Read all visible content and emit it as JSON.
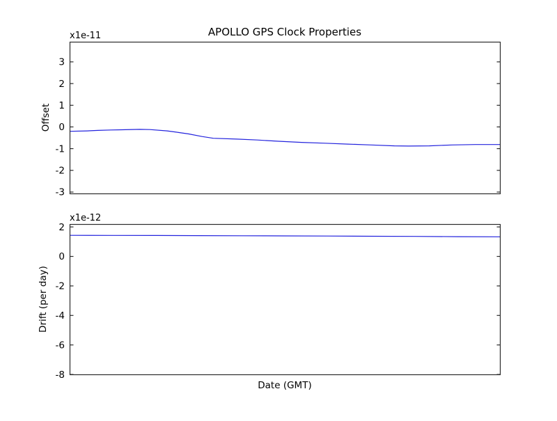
{
  "figure": {
    "background_color": "#ffffff",
    "axes_color": "#2a2a2a",
    "text_color": "#000000"
  },
  "chart_data": [
    {
      "type": "line",
      "name": "offset",
      "title": "APOLLO GPS Clock Properties",
      "ylabel": "Offset",
      "scale_label": "x1e-11",
      "unit_multiplier": "1e-11",
      "line_color": "#2222dd",
      "grid": false,
      "legend": "none",
      "ylim": [
        -3.08,
        3.91
      ],
      "yticks": [
        3,
        2,
        1,
        0,
        -1,
        -2,
        -3
      ],
      "ytick_labels": [
        "3",
        "2",
        "1",
        "0",
        "-1",
        "-2",
        "-3"
      ],
      "xlim": [
        0,
        1
      ],
      "xticks": [],
      "x": [
        0.0,
        0.04,
        0.065,
        0.095,
        0.12,
        0.162,
        0.186,
        0.226,
        0.255,
        0.275,
        0.307,
        0.333,
        0.388,
        0.436,
        0.485,
        0.538,
        0.593,
        0.646,
        0.7,
        0.754,
        0.787,
        0.835,
        0.888,
        0.942,
        1.0
      ],
      "y": [
        -0.2,
        -0.18,
        -0.16,
        -0.14,
        -0.13,
        -0.11,
        -0.12,
        -0.18,
        -0.26,
        -0.32,
        -0.44,
        -0.52,
        -0.56,
        -0.6,
        -0.66,
        -0.71,
        -0.75,
        -0.79,
        -0.83,
        -0.87,
        -0.88,
        -0.87,
        -0.83,
        -0.81,
        -0.81
      ]
    },
    {
      "type": "line",
      "name": "drift",
      "xlabel": "Date (GMT)",
      "ylabel": "Drift (per day)",
      "scale_label": "x1e-12",
      "unit_multiplier": "1e-12",
      "line_color": "#2222dd",
      "grid": false,
      "legend": "none",
      "ylim": [
        -8.02,
        2.17
      ],
      "yticks": [
        2,
        0,
        -2,
        -4,
        -6,
        -8
      ],
      "ytick_labels": [
        "2",
        "0",
        "-2",
        "-4",
        "-6",
        "-8"
      ],
      "xlim": [
        0,
        1
      ],
      "xticks": [],
      "x": [
        0.0,
        0.1,
        0.2,
        0.3,
        0.4,
        0.5,
        0.6,
        0.7,
        0.8,
        0.9,
        1.0
      ],
      "y": [
        1.43,
        1.425,
        1.42,
        1.41,
        1.4,
        1.39,
        1.38,
        1.37,
        1.36,
        1.34,
        1.33
      ]
    }
  ]
}
